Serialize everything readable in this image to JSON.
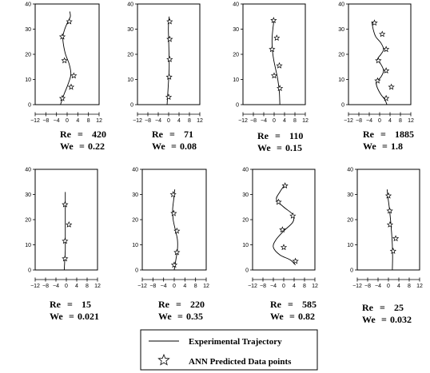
{
  "chart_data": [
    {
      "type": "scatter",
      "re_label": "Re",
      "re_value": "420",
      "we_label": "We",
      "we_value": "0.22",
      "xlim": [
        -12,
        12
      ],
      "ylim": [
        0,
        40
      ],
      "xticks": [
        "-12",
        "-8",
        "-4",
        "0",
        "4",
        "8",
        "12"
      ],
      "yticks": [
        "0",
        "10",
        "20",
        "30",
        "40"
      ],
      "trajectory": {
        "x": [
          -2.5,
          -1.2,
          0.3,
          1.4,
          0.8,
          -0.6,
          -1.4,
          -1.6,
          -0.9,
          0.3,
          1.2,
          1.0
        ],
        "y": [
          0,
          4,
          8,
          12,
          16,
          20,
          24,
          27,
          30,
          33,
          35,
          37
        ]
      },
      "ann_points": {
        "x": [
          -1.8,
          1.5,
          2.5,
          -1.0,
          -1.8,
          0.8
        ],
        "y": [
          2.5,
          7,
          11.5,
          17.5,
          27,
          33
        ]
      }
    },
    {
      "type": "scatter",
      "re_label": "Re",
      "re_value": "71",
      "we_label": "We",
      "we_value": "0.08",
      "xlim": [
        -12,
        12
      ],
      "ylim": [
        0,
        40
      ],
      "xticks": [
        "-12",
        "-8",
        "-4",
        "0",
        "4",
        "8",
        "12"
      ],
      "yticks": [
        "0",
        "10",
        "20",
        "30",
        "40"
      ],
      "trajectory": {
        "x": [
          -0.6,
          -0.3,
          0.0,
          0.2,
          0.2,
          0.1,
          0.0,
          -0.1,
          0.0,
          0.2
        ],
        "y": [
          0,
          5,
          10,
          14,
          18,
          22,
          26,
          30,
          33,
          35
        ]
      },
      "ann_points": {
        "x": [
          0.0,
          0.2,
          0.4,
          0.4,
          0.4
        ],
        "y": [
          3,
          11,
          18,
          26,
          33
        ]
      }
    },
    {
      "type": "scatter",
      "re_label": "Re",
      "re_value": "110",
      "we_label": "We",
      "we_value": "0.15",
      "xlim": [
        -12,
        12
      ],
      "ylim": [
        0,
        40
      ],
      "xticks": [
        "-12",
        "-8",
        "-4",
        "0",
        "4",
        "8",
        "12"
      ],
      "yticks": [
        "0",
        "10",
        "20",
        "30",
        "40"
      ],
      "trajectory": {
        "x": [
          2.2,
          2.0,
          1.4,
          0.6,
          -0.2,
          -0.7,
          -0.8,
          -0.5,
          0.0
        ],
        "y": [
          0,
          5,
          10,
          14,
          18,
          22,
          26,
          30,
          34
        ]
      },
      "ann_points": {
        "x": [
          2.2,
          0.0,
          2.0,
          -0.8,
          1.0,
          -0.2
        ],
        "y": [
          6.5,
          11.5,
          15.5,
          22,
          26.5,
          33.5
        ]
      }
    },
    {
      "type": "scatter",
      "re_label": "Re",
      "re_value": "1885",
      "we_label": "We",
      "we_value": "1.8",
      "xlim": [
        -12,
        12
      ],
      "ylim": [
        0,
        40
      ],
      "xticks": [
        "-12",
        "-8",
        "-4",
        "0",
        "4",
        "8",
        "12"
      ],
      "yticks": [
        "0",
        "10",
        "20",
        "30",
        "40"
      ],
      "trajectory": {
        "x": [
          2.8,
          2.0,
          0.5,
          -1.0,
          -1.2,
          0.5,
          1.5,
          0.5,
          -0.8,
          0.5,
          1.5,
          0.5,
          -1.5,
          -2.5,
          -3.0
        ],
        "y": [
          0,
          2,
          4,
          7,
          9,
          11,
          13.5,
          16,
          18,
          20,
          22,
          24.5,
          27,
          30,
          33
        ]
      },
      "ann_points": {
        "x": [
          2.5,
          4.5,
          -0.8,
          2.5,
          -0.5,
          2.5,
          1.0,
          -2.0
        ],
        "y": [
          2.5,
          7,
          9.5,
          13.5,
          17.5,
          22,
          28,
          32.5
        ]
      }
    },
    {
      "type": "scatter",
      "re_label": "Re",
      "re_value": "15",
      "we_label": "We",
      "we_value": "0.021",
      "xlim": [
        -12,
        12
      ],
      "ylim": [
        0,
        40
      ],
      "xticks": [
        "-12",
        "-8",
        "-4",
        "0",
        "4",
        "8",
        "12"
      ],
      "yticks": [
        "0",
        "10",
        "20",
        "30",
        "40"
      ],
      "trajectory": {
        "x": [
          -0.8,
          -0.6,
          -0.4,
          -0.4,
          -0.4,
          -0.4,
          -0.4,
          -0.4
        ],
        "y": [
          0,
          4,
          8,
          12,
          16,
          20,
          25,
          31
        ]
      },
      "ann_points": {
        "x": [
          -0.5,
          -0.5,
          1.0,
          -0.5
        ],
        "y": [
          4.5,
          11.5,
          18,
          26
        ]
      }
    },
    {
      "type": "scatter",
      "re_label": "Re",
      "re_value": "220",
      "we_label": "We",
      "we_value": "0.35",
      "xlim": [
        -12,
        12
      ],
      "ylim": [
        0,
        40
      ],
      "xticks": [
        "-12",
        "-8",
        "-4",
        "0",
        "4",
        "8",
        "12"
      ],
      "yticks": [
        "0",
        "10",
        "20",
        "30",
        "40"
      ],
      "trajectory": {
        "x": [
          0.0,
          0.6,
          1.2,
          1.2,
          0.4,
          -0.4,
          -0.6,
          -0.2,
          0.2
        ],
        "y": [
          0,
          4,
          8,
          12,
          16,
          20,
          24,
          28,
          32
        ]
      },
      "ann_points": {
        "x": [
          0.0,
          1.0,
          1.0,
          -0.2,
          -0.4
        ],
        "y": [
          2,
          7,
          15.5,
          22.5,
          30
        ]
      }
    },
    {
      "type": "scatter",
      "re_label": "Re",
      "re_value": "585",
      "we_label": "We",
      "we_value": "0.82",
      "xlim": [
        -12,
        12
      ],
      "ylim": [
        0,
        40
      ],
      "xticks": [
        "-12",
        "-8",
        "-4",
        "0",
        "4",
        "8",
        "12"
      ],
      "yticks": [
        "0",
        "10",
        "20",
        "30",
        "40"
      ],
      "trajectory": {
        "x": [
          4.5,
          2.5,
          -1.5,
          -4.0,
          -3.0,
          0.0,
          3.5,
          3.5,
          0.0,
          -2.8,
          -1.5,
          0.5
        ],
        "y": [
          2,
          4,
          6,
          9,
          12,
          15.5,
          19,
          22,
          25,
          28,
          31,
          34
        ]
      },
      "ann_points": {
        "x": [
          4.5,
          0.0,
          -0.5,
          3.5,
          -2.0,
          0.5
        ],
        "y": [
          3.5,
          9,
          16,
          21.5,
          27,
          33.5
        ]
      }
    },
    {
      "type": "scatter",
      "re_label": "Re",
      "re_value": "25",
      "we_label": "We",
      "we_value": "0.032",
      "xlim": [
        -12,
        12
      ],
      "ylim": [
        0,
        40
      ],
      "xticks": [
        "-12",
        "-8",
        "-4",
        "0",
        "4",
        "8",
        "12"
      ],
      "yticks": [
        "0",
        "10",
        "20",
        "30",
        "40"
      ],
      "trajectory": {
        "x": [
          1.5,
          1.6,
          1.5,
          1.2,
          0.8,
          0.3,
          -0.2,
          -0.5
        ],
        "y": [
          0,
          5,
          10,
          15,
          20,
          25,
          29,
          32
        ]
      },
      "ann_points": {
        "x": [
          1.8,
          2.8,
          0.6,
          0.5,
          0.0
        ],
        "y": [
          7.5,
          12.5,
          18,
          23.5,
          29.5
        ]
      }
    }
  ],
  "legend": {
    "line_label": "Experimental Trajectory",
    "marker_label": "ANN Predicted Data points"
  }
}
